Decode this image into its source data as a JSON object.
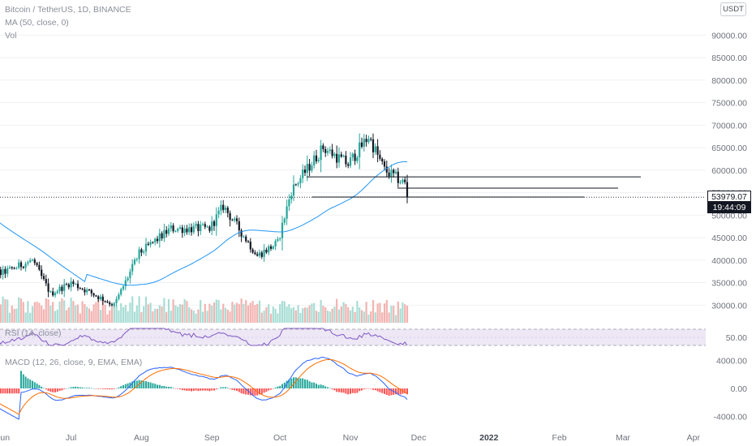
{
  "legend": {
    "symbol": "Bitcoin / TetherUS, 1D, BINANCE",
    "ma": "MA (50, close, 0)",
    "volume": "Vol",
    "rsi": "RSI (14, close)",
    "macd": "MACD (12, 26, close, 9, EMA, EMA)"
  },
  "price_axis": {
    "currency": "USDT",
    "current_price": "53979.07",
    "countdown": "19:44:09"
  },
  "colors": {
    "up": "#26a69a",
    "down": "#131722",
    "ma": "#2196f3",
    "volume_up": "#a8ddd4",
    "volume_down": "#f3b3b0",
    "rsi_line": "#7e57c2",
    "rsi_band": "#ede7f6",
    "macd_line": "#2962ff",
    "signal_line": "#ff6d00",
    "hist_up": "#26a69a",
    "hist_down": "#ff5252"
  },
  "chart_data": [
    {
      "type": "candlestick",
      "title": "Bitcoin / TetherUS, 1D, BINANCE",
      "ylim": [
        25000,
        95000
      ],
      "y_ticks": [
        30000,
        35000,
        40000,
        45000,
        50000,
        55000,
        60000,
        65000,
        70000,
        75000,
        80000,
        85000,
        90000
      ],
      "y_tick_labels": [
        "30000.00",
        "35000.00",
        "40000.00",
        "45000.00",
        "50000.00",
        "55000.00",
        "60000.00",
        "65000.00",
        "70000.00",
        "75000.00",
        "80000.00",
        "85000.00",
        "90000.00"
      ],
      "x_labels": [
        "Jun",
        "Jul",
        "Aug",
        "Sep",
        "Oct",
        "Nov",
        "Dec",
        "2022",
        "Feb",
        "Mar",
        "Apr"
      ],
      "approx_close_path": [
        {
          "date": "2021-05-20",
          "close": 41000
        },
        {
          "date": "2021-05-31",
          "close": 37000
        },
        {
          "date": "2021-06-14",
          "close": 40000
        },
        {
          "date": "2021-06-22",
          "close": 32500
        },
        {
          "date": "2021-07-01",
          "close": 35000
        },
        {
          "date": "2021-07-20",
          "close": 30000
        },
        {
          "date": "2021-07-31",
          "close": 41500
        },
        {
          "date": "2021-08-14",
          "close": 47000
        },
        {
          "date": "2021-08-31",
          "close": 47000
        },
        {
          "date": "2021-09-06",
          "close": 52000
        },
        {
          "date": "2021-09-21",
          "close": 41000
        },
        {
          "date": "2021-09-30",
          "close": 43800
        },
        {
          "date": "2021-10-06",
          "close": 55500
        },
        {
          "date": "2021-10-20",
          "close": 65000
        },
        {
          "date": "2021-10-31",
          "close": 61300
        },
        {
          "date": "2021-11-09",
          "close": 67500
        },
        {
          "date": "2021-11-16",
          "close": 60000
        },
        {
          "date": "2021-11-25",
          "close": 57000
        },
        {
          "date": "2021-11-26",
          "close": 53979.07
        }
      ],
      "horizontal_levels": [
        58500,
        56000,
        54000
      ],
      "current_price": 53979.07
    },
    {
      "type": "line",
      "title": "RSI (14, close)",
      "y_ticks": [
        50
      ],
      "y_tick_labels": [
        "50.00"
      ],
      "band": [
        30,
        70
      ]
    },
    {
      "type": "line",
      "title": "MACD (12, 26, close, 9, EMA, EMA)",
      "y_ticks": [
        4000,
        0,
        -4000
      ],
      "y_tick_labels": [
        "4000.00",
        "0.00",
        "-4000.00"
      ],
      "series": [
        {
          "values_note": "macd"
        },
        {
          "values_note": "signal"
        }
      ]
    }
  ]
}
